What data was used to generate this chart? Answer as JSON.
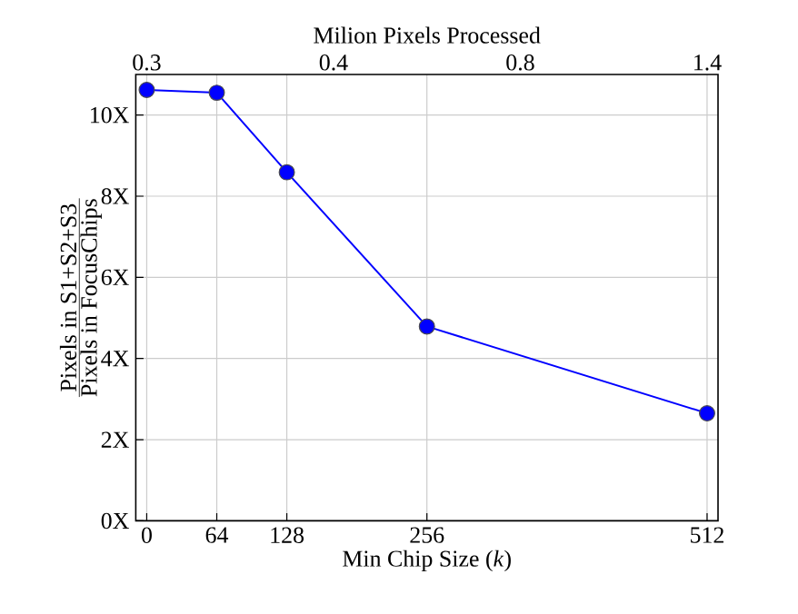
{
  "chart_data": {
    "type": "line",
    "xlabel": "Min Chip Size (*k*)",
    "ylabel": "\\frac{\\mbox{Pixels in S1+S2+S3}}{\\mbox{Pixels in FocusChips}}",
    "x2label": "Milion Pixels Processed",
    "x": [
      0,
      64,
      128,
      256,
      512
    ],
    "series": [
      {
        "color": "#0000ff",
        "values": [
          10.62,
          10.55,
          8.59,
          4.79,
          2.65
        ]
      }
    ],
    "xlim": [
      -10,
      522
    ],
    "xticks": [
      0,
      64,
      128,
      256,
      512
    ],
    "annotations": [
      "0.3",
      "0.4",
      "0.8",
      "1.4"
    ],
    "ylim": [
      0,
      11
    ],
    "yticks": [
      {
        "value": 0,
        "label": "0X"
      },
      {
        "value": 2,
        "label": "2X"
      },
      {
        "value": 4,
        "label": "4X"
      },
      {
        "value": 6,
        "label": "6X"
      },
      {
        "value": 8,
        "label": "8X"
      },
      {
        "value": 10,
        "label": "10X"
      }
    ],
    "grid": true,
    "marker": "circle",
    "line_style": "solid"
  }
}
